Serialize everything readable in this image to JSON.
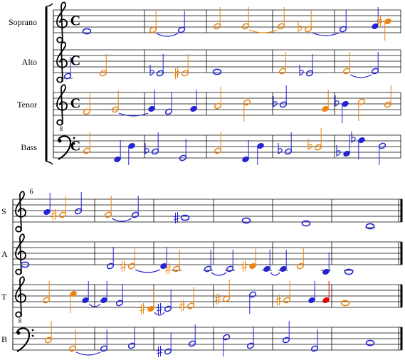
{
  "systems": [
    {
      "staff_labels": [
        "Soprano",
        "Alto",
        "Tenor",
        "Bass"
      ]
    },
    {
      "measure_number": "6",
      "staff_labels": [
        "S",
        "A",
        "T",
        "B"
      ]
    }
  ],
  "time_signature": "C",
  "tenor_clef_octave": "8"
}
